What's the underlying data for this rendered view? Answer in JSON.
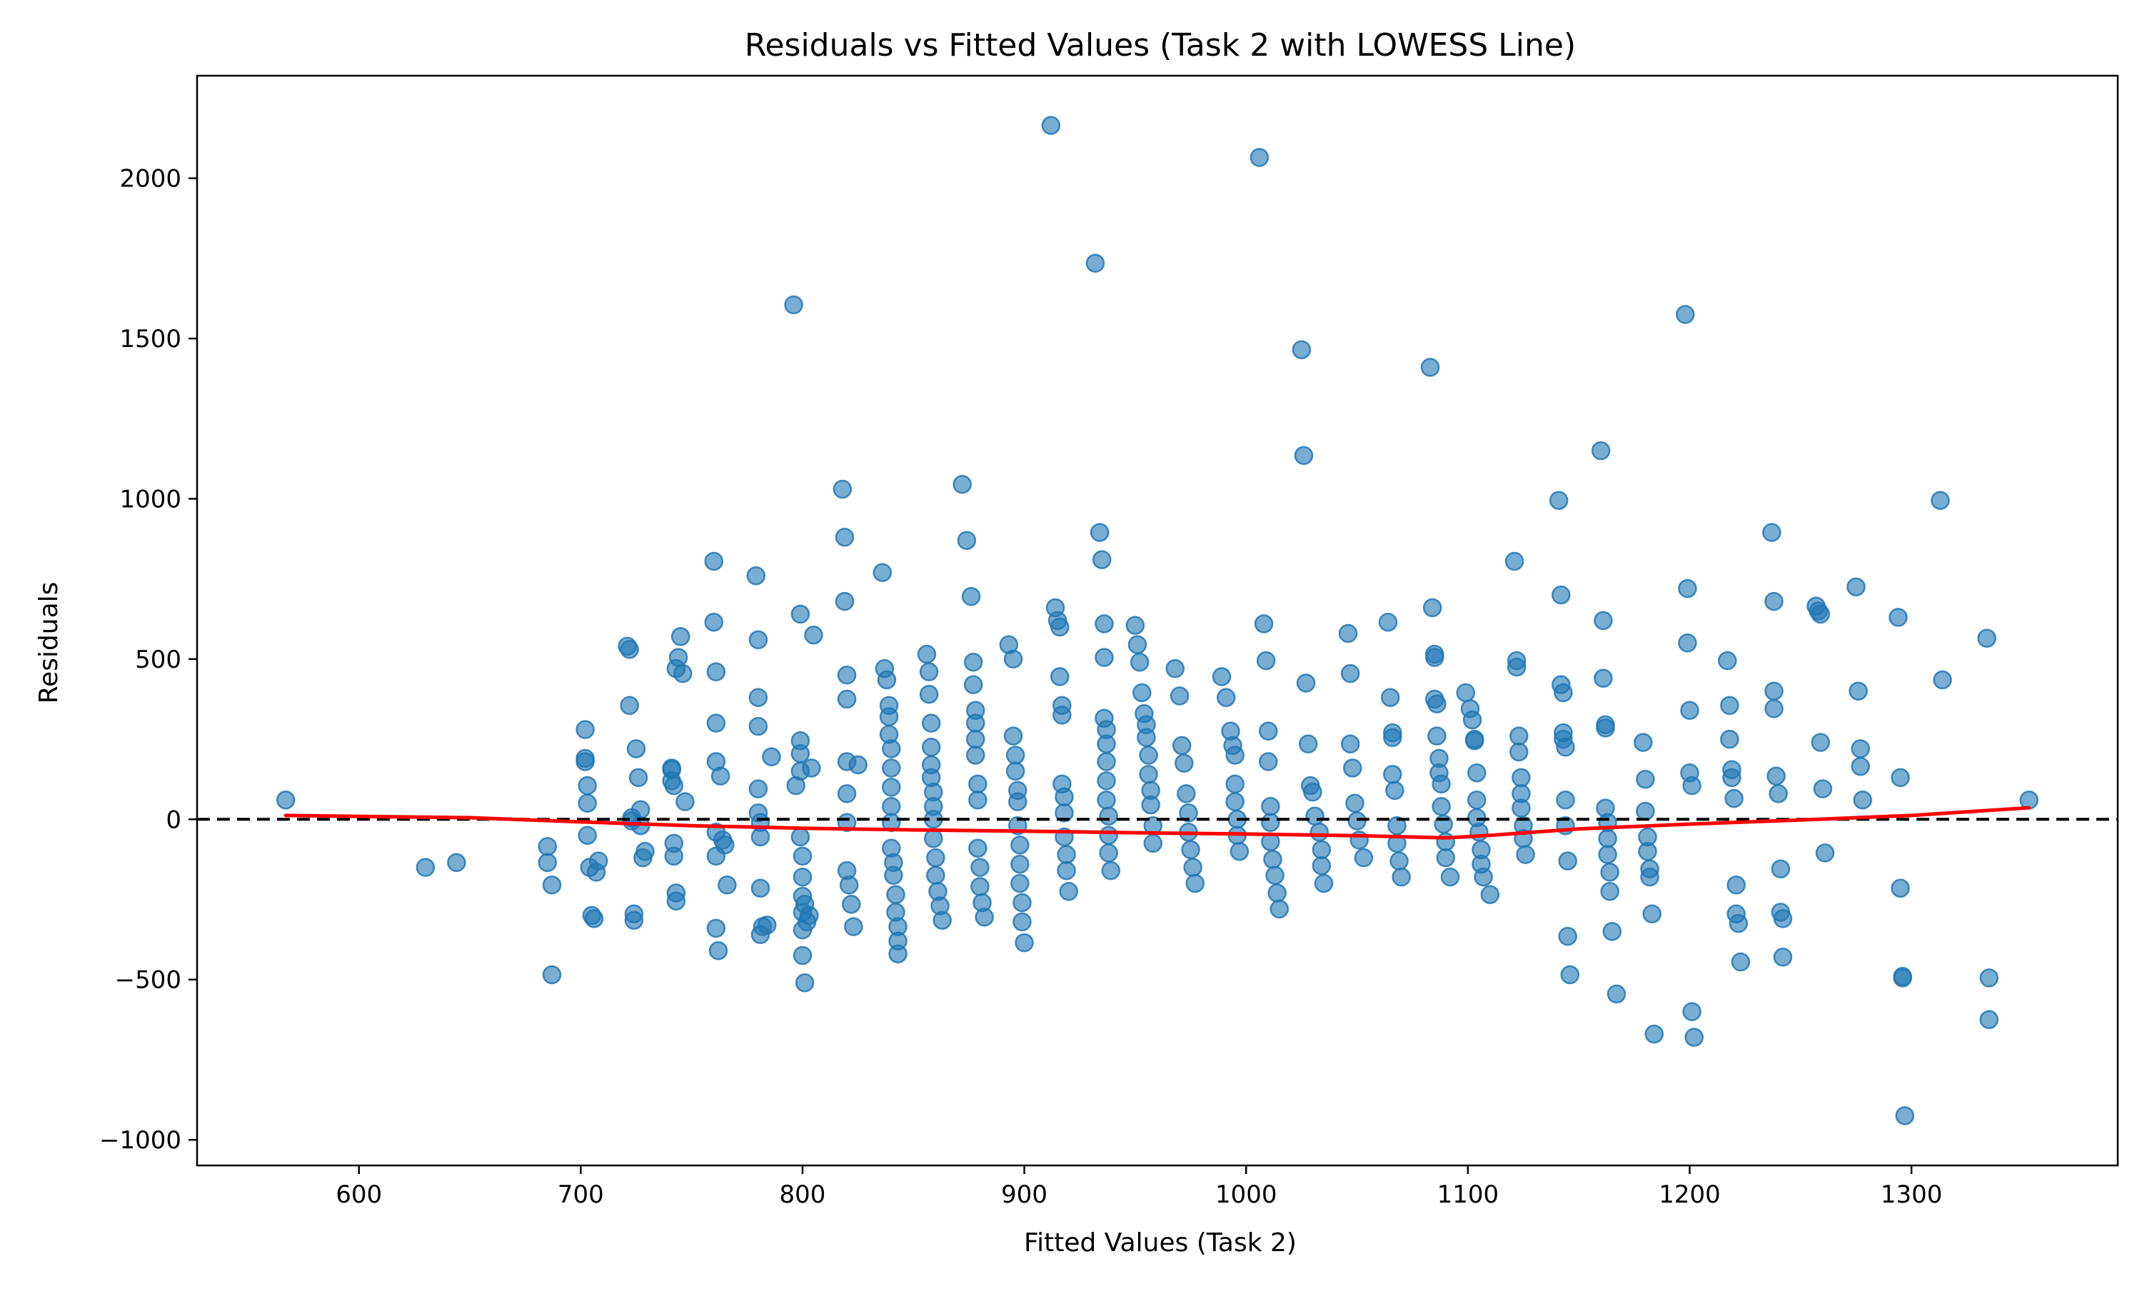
{
  "chart_data": {
    "type": "scatter",
    "title": "Residuals vs Fitted Values (Task 2 with LOWESS Line)",
    "xlabel": "Fitted Values (Task 2)",
    "ylabel": "Residuals",
    "xlim": [
      527,
      1393
    ],
    "ylim": [
      -1080,
      2320
    ],
    "xticks": [
      600,
      700,
      800,
      900,
      1000,
      1100,
      1200,
      1300
    ],
    "xtick_labels": [
      "600",
      "700",
      "800",
      "900",
      "1000",
      "1100",
      "1200",
      "1300"
    ],
    "yticks": [
      -1000,
      -500,
      0,
      500,
      1000,
      1500,
      2000
    ],
    "ytick_labels": [
      "−1000",
      "−500",
      "0",
      "500",
      "1000",
      "1500",
      "2000"
    ],
    "grid": false,
    "point_color": "#1f77b4",
    "point_alpha": 0.6,
    "lowess_color": "#ff0000",
    "reference_line": {
      "y": 0,
      "style": "dashed",
      "color": "#000000"
    },
    "series": [
      {
        "kind": "points",
        "x": [
          567,
          630,
          644,
          685,
          685,
          687,
          687,
          702,
          702,
          702,
          703,
          703,
          703,
          704,
          705,
          706,
          707,
          708,
          721,
          722,
          722,
          723,
          723,
          724,
          724,
          725,
          726,
          727,
          727,
          728,
          729,
          741,
          741,
          741,
          742,
          742,
          742,
          743,
          743,
          743,
          744,
          745,
          746,
          747,
          760,
          760,
          761,
          761,
          761,
          761,
          761,
          761,
          762,
          763,
          764,
          765,
          766,
          779,
          780,
          780,
          780,
          780,
          780,
          781,
          781,
          781,
          781,
          782,
          784,
          786,
          796,
          797,
          799,
          799,
          799,
          799,
          799,
          800,
          800,
          800,
          800,
          800,
          800,
          801,
          801,
          802,
          803,
          804,
          805,
          818,
          819,
          819,
          820,
          820,
          820,
          820,
          820,
          820,
          821,
          822,
          823,
          825,
          836,
          837,
          838,
          839,
          839,
          839,
          840,
          840,
          840,
          840,
          840,
          840,
          841,
          841,
          842,
          842,
          843,
          843,
          843,
          856,
          857,
          857,
          858,
          858,
          858,
          858,
          859,
          859,
          859,
          859,
          860,
          860,
          861,
          862,
          863,
          872,
          874,
          876,
          877,
          877,
          878,
          878,
          878,
          878,
          879,
          879,
          879,
          880,
          880,
          881,
          882,
          893,
          895,
          895,
          896,
          896,
          897,
          897,
          897,
          898,
          898,
          898,
          899,
          899,
          900,
          912,
          914,
          915,
          916,
          916,
          917,
          917,
          917,
          918,
          918,
          918,
          919,
          919,
          920,
          932,
          934,
          935,
          936,
          936,
          936,
          937,
          937,
          937,
          937,
          937,
          938,
          938,
          938,
          939,
          950,
          951,
          952,
          953,
          954,
          955,
          955,
          956,
          956,
          957,
          957,
          958,
          958,
          968,
          970,
          971,
          972,
          973,
          974,
          974,
          975,
          976,
          977,
          989,
          991,
          993,
          994,
          995,
          995,
          995,
          996,
          996,
          997,
          1006,
          1008,
          1009,
          1010,
          1010,
          1011,
          1011,
          1011,
          1012,
          1013,
          1014,
          1015,
          1025,
          1026,
          1027,
          1028,
          1029,
          1030,
          1031,
          1033,
          1034,
          1034,
          1035,
          1046,
          1047,
          1047,
          1048,
          1049,
          1050,
          1051,
          1053,
          1064,
          1065,
          1066,
          1066,
          1066,
          1067,
          1068,
          1068,
          1069,
          1070,
          1083,
          1084,
          1085,
          1085,
          1085,
          1086,
          1086,
          1087,
          1087,
          1088,
          1088,
          1089,
          1090,
          1090,
          1092,
          1099,
          1101,
          1102,
          1103,
          1103,
          1104,
          1104,
          1104,
          1105,
          1106,
          1106,
          1107,
          1110,
          1121,
          1122,
          1122,
          1123,
          1123,
          1124,
          1124,
          1124,
          1125,
          1125,
          1126,
          1141,
          1142,
          1142,
          1143,
          1143,
          1143,
          1144,
          1144,
          1144,
          1145,
          1145,
          1146,
          1160,
          1161,
          1161,
          1162,
          1162,
          1162,
          1163,
          1163,
          1163,
          1164,
          1164,
          1165,
          1167,
          1179,
          1180,
          1180,
          1181,
          1181,
          1182,
          1182,
          1183,
          1184,
          1198,
          1199,
          1199,
          1200,
          1200,
          1201,
          1201,
          1202,
          1217,
          1218,
          1218,
          1219,
          1219,
          1220,
          1221,
          1221,
          1222,
          1223,
          1237,
          1238,
          1238,
          1238,
          1239,
          1240,
          1241,
          1241,
          1242,
          1242,
          1257,
          1258,
          1259,
          1259,
          1260,
          1261,
          1275,
          1276,
          1277,
          1277,
          1278,
          1294,
          1295,
          1295,
          1296,
          1296,
          1297,
          1313,
          1314,
          1334,
          1335,
          1335,
          1353
        ],
        "y": [
          60,
          -150,
          -135,
          -85,
          -135,
          -205,
          -485,
          280,
          190,
          180,
          105,
          50,
          -50,
          -150,
          -300,
          -310,
          -165,
          -130,
          540,
          530,
          355,
          5,
          -5,
          -295,
          -315,
          220,
          130,
          30,
          -20,
          -120,
          -100,
          160,
          155,
          120,
          105,
          -75,
          -115,
          -230,
          -255,
          470,
          505,
          570,
          455,
          55,
          805,
          615,
          460,
          300,
          180,
          -40,
          -115,
          -340,
          -410,
          135,
          -65,
          -80,
          -205,
          760,
          560,
          380,
          290,
          95,
          20,
          -10,
          -55,
          -215,
          -360,
          -335,
          -330,
          195,
          1605,
          105,
          640,
          245,
          205,
          150,
          -55,
          -115,
          -180,
          -240,
          -290,
          -345,
          -425,
          -510,
          -265,
          -320,
          -300,
          160,
          575,
          1030,
          880,
          680,
          450,
          375,
          180,
          80,
          -10,
          -160,
          -205,
          -265,
          -335,
          170,
          770,
          470,
          435,
          355,
          320,
          265,
          220,
          160,
          100,
          40,
          -10,
          -90,
          -135,
          -175,
          -235,
          -290,
          -335,
          -380,
          -420,
          515,
          460,
          390,
          300,
          225,
          170,
          130,
          85,
          40,
          0,
          -60,
          -120,
          -175,
          -225,
          -270,
          -315,
          1045,
          870,
          695,
          490,
          420,
          340,
          300,
          250,
          200,
          110,
          60,
          -90,
          -150,
          -210,
          -260,
          -305,
          545,
          500,
          260,
          200,
          150,
          90,
          55,
          -20,
          -80,
          -140,
          -200,
          -260,
          -320,
          -385,
          2165,
          660,
          620,
          600,
          445,
          355,
          325,
          110,
          70,
          20,
          -55,
          -110,
          -160,
          -225,
          1735,
          895,
          810,
          610,
          505,
          315,
          280,
          235,
          180,
          120,
          60,
          10,
          -50,
          -105,
          -160,
          605,
          545,
          490,
          395,
          330,
          295,
          255,
          200,
          140,
          90,
          45,
          -20,
          -75,
          470,
          385,
          230,
          175,
          80,
          20,
          -40,
          -95,
          -150,
          -200,
          445,
          380,
          275,
          230,
          200,
          110,
          55,
          0,
          -50,
          -100,
          2065,
          610,
          495,
          275,
          180,
          40,
          -10,
          -70,
          -125,
          -175,
          -230,
          -280,
          1465,
          1135,
          425,
          235,
          105,
          85,
          10,
          -40,
          -95,
          -145,
          -200,
          580,
          455,
          235,
          160,
          50,
          -5,
          -65,
          -120,
          615,
          380,
          270,
          255,
          140,
          90,
          -20,
          -75,
          -130,
          -180,
          1410,
          660,
          515,
          505,
          375,
          360,
          260,
          190,
          145,
          110,
          40,
          -15,
          -70,
          -120,
          -180,
          395,
          345,
          310,
          250,
          245,
          145,
          60,
          5,
          -40,
          -95,
          -140,
          -180,
          -235,
          805,
          495,
          475,
          260,
          210,
          130,
          80,
          35,
          -20,
          -60,
          -110,
          995,
          700,
          420,
          395,
          270,
          250,
          225,
          60,
          -20,
          -130,
          -365,
          -485,
          1150,
          620,
          440,
          295,
          285,
          35,
          -10,
          -60,
          -110,
          -165,
          -225,
          -350,
          -545,
          240,
          125,
          25,
          -55,
          -100,
          -155,
          -180,
          -295,
          -670,
          1575,
          720,
          550,
          340,
          145,
          105,
          -600,
          -680,
          495,
          355,
          250,
          155,
          130,
          65,
          -205,
          -295,
          -325,
          -445,
          895,
          680,
          400,
          345,
          135,
          80,
          -155,
          -290,
          -310,
          -430,
          665,
          650,
          640,
          240,
          95,
          -105,
          725,
          400,
          220,
          165,
          60,
          630,
          130,
          -215,
          -490,
          -495,
          -925,
          995,
          435,
          565,
          -495,
          -625,
          60
        ]
      },
      {
        "kind": "lowess",
        "x": [
          567,
          650,
          700,
          750,
          800,
          850,
          900,
          950,
          1000,
          1050,
          1090,
          1110,
          1150,
          1200,
          1250,
          1300,
          1353
        ],
        "y": [
          12,
          5,
          -8,
          -20,
          -28,
          -33,
          -37,
          -42,
          -46,
          -51,
          -58,
          -50,
          -30,
          -15,
          -2,
          12,
          36
        ]
      }
    ]
  }
}
